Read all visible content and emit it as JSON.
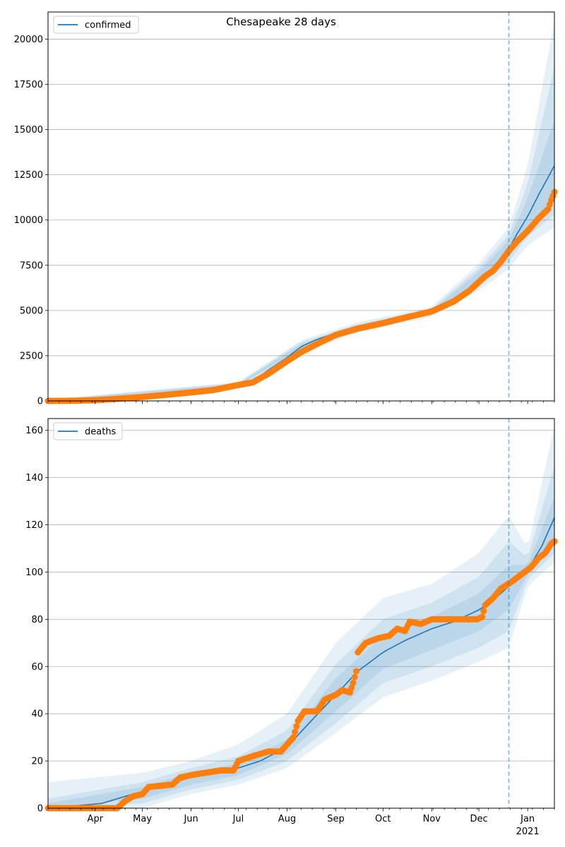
{
  "title": "Chesapeake 28 days",
  "colors": {
    "model_line": "#1f77b4",
    "observed": "#ff7f0e",
    "band": "#1f77b4",
    "grid": "#b0b0b0",
    "vline": "#1f77b4"
  },
  "x_axis": {
    "start": "2020-03-02",
    "end": "2021-01-18",
    "month_ticks": [
      {
        "date": "2020-04-01",
        "label": "Apr"
      },
      {
        "date": "2020-05-01",
        "label": "May"
      },
      {
        "date": "2020-06-01",
        "label": "Jun"
      },
      {
        "date": "2020-07-01",
        "label": "Jul"
      },
      {
        "date": "2020-08-01",
        "label": "Aug"
      },
      {
        "date": "2020-09-01",
        "label": "Sep"
      },
      {
        "date": "2020-10-01",
        "label": "Oct"
      },
      {
        "date": "2020-11-01",
        "label": "Nov"
      },
      {
        "date": "2020-12-01",
        "label": "Dec"
      },
      {
        "date": "2021-01-01",
        "label": "Jan"
      }
    ],
    "year_label": "2021",
    "forecast_start": "2020-12-20"
  },
  "chart_data": [
    {
      "type": "line",
      "legend": "confirmed",
      "legend_position": "upper-left",
      "grid_y": true,
      "ylim": [
        0,
        21500
      ],
      "yticks": [
        0,
        2500,
        5000,
        7500,
        10000,
        12500,
        15000,
        17500,
        20000
      ],
      "model": [
        [
          "2020-03-02",
          0
        ],
        [
          "2020-03-20",
          20
        ],
        [
          "2020-04-05",
          80
        ],
        [
          "2020-04-20",
          170
        ],
        [
          "2020-05-01",
          250
        ],
        [
          "2020-05-15",
          380
        ],
        [
          "2020-06-01",
          520
        ],
        [
          "2020-06-15",
          650
        ],
        [
          "2020-07-01",
          900
        ],
        [
          "2020-07-10",
          1100
        ],
        [
          "2020-07-20",
          1700
        ],
        [
          "2020-08-01",
          2400
        ],
        [
          "2020-08-10",
          3000
        ],
        [
          "2020-08-20",
          3400
        ],
        [
          "2020-09-01",
          3750
        ],
        [
          "2020-09-15",
          4050
        ],
        [
          "2020-10-01",
          4300
        ],
        [
          "2020-10-15",
          4550
        ],
        [
          "2020-11-01",
          4900
        ],
        [
          "2020-11-15",
          5450
        ],
        [
          "2020-11-25",
          6100
        ],
        [
          "2020-12-05",
          6900
        ],
        [
          "2020-12-15",
          7700
        ],
        [
          "2020-12-20",
          8400
        ],
        [
          "2020-12-25",
          9200
        ],
        [
          "2021-01-01",
          10200
        ],
        [
          "2021-01-08",
          11400
        ],
        [
          "2021-01-18",
          13000
        ]
      ],
      "bands": [
        {
          "lower": [
            [
              "2020-03-02",
              0
            ],
            [
              "2020-07-01",
              750
            ],
            [
              "2020-08-10",
              2700
            ],
            [
              "2020-09-15",
              3800
            ],
            [
              "2020-11-01",
              4650
            ],
            [
              "2020-12-01",
              6100
            ],
            [
              "2020-12-20",
              7300
            ],
            [
              "2021-01-01",
              8600
            ],
            [
              "2021-01-18",
              9600
            ]
          ],
          "upper": [
            [
              "2020-03-02",
              80
            ],
            [
              "2020-07-01",
              1050
            ],
            [
              "2020-08-10",
              3350
            ],
            [
              "2020-09-15",
              4350
            ],
            [
              "2020-11-01",
              5200
            ],
            [
              "2020-12-01",
              7600
            ],
            [
              "2020-12-20",
              9600
            ],
            [
              "2021-01-01",
              13000
            ],
            [
              "2021-01-18",
              21000
            ]
          ]
        },
        {
          "lower": [
            [
              "2020-03-02",
              0
            ],
            [
              "2020-07-01",
              800
            ],
            [
              "2020-08-10",
              2800
            ],
            [
              "2020-09-15",
              3900
            ],
            [
              "2020-11-01",
              4750
            ],
            [
              "2020-12-01",
              6300
            ],
            [
              "2020-12-20",
              7700
            ],
            [
              "2021-01-01",
              9100
            ],
            [
              "2021-01-18",
              10300
            ]
          ],
          "upper": [
            [
              "2020-03-02",
              50
            ],
            [
              "2020-07-01",
              1000
            ],
            [
              "2020-08-10",
              3250
            ],
            [
              "2020-09-15",
              4250
            ],
            [
              "2020-11-01",
              5100
            ],
            [
              "2020-12-01",
              7350
            ],
            [
              "2020-12-20",
              9200
            ],
            [
              "2021-01-01",
              12000
            ],
            [
              "2021-01-18",
              18500
            ]
          ]
        },
        {
          "lower": [
            [
              "2020-03-02",
              0
            ],
            [
              "2020-07-01",
              850
            ],
            [
              "2020-08-10",
              2880
            ],
            [
              "2020-09-15",
              3970
            ],
            [
              "2020-11-01",
              4820
            ],
            [
              "2020-12-01",
              6450
            ],
            [
              "2020-12-20",
              7950
            ],
            [
              "2021-01-01",
              9550
            ],
            [
              "2021-01-18",
              11200
            ]
          ],
          "upper": [
            [
              "2020-03-02",
              30
            ],
            [
              "2020-07-01",
              950
            ],
            [
              "2020-08-10",
              3150
            ],
            [
              "2020-09-15",
              4150
            ],
            [
              "2020-11-01",
              5000
            ],
            [
              "2020-12-01",
              7150
            ],
            [
              "2020-12-20",
              8900
            ],
            [
              "2021-01-01",
              11200
            ],
            [
              "2021-01-18",
              15500
            ]
          ]
        }
      ],
      "observed": [
        [
          "2020-03-02",
          0
        ],
        [
          "2020-03-20",
          10
        ],
        [
          "2020-04-01",
          40
        ],
        [
          "2020-04-10",
          90
        ],
        [
          "2020-04-20",
          150
        ],
        [
          "2020-05-01",
          220
        ],
        [
          "2020-05-15",
          330
        ],
        [
          "2020-06-01",
          470
        ],
        [
          "2020-06-15",
          600
        ],
        [
          "2020-07-01",
          880
        ],
        [
          "2020-07-10",
          1020
        ],
        [
          "2020-07-20",
          1500
        ],
        [
          "2020-08-01",
          2200
        ],
        [
          "2020-08-10",
          2700
        ],
        [
          "2020-08-20",
          3150
        ],
        [
          "2020-09-01",
          3650
        ],
        [
          "2020-09-15",
          4000
        ],
        [
          "2020-10-01",
          4300
        ],
        [
          "2020-10-15",
          4600
        ],
        [
          "2020-11-01",
          4950
        ],
        [
          "2020-11-15",
          5500
        ],
        [
          "2020-11-25",
          6100
        ],
        [
          "2020-12-05",
          6900
        ],
        [
          "2020-12-10",
          7200
        ],
        [
          "2020-12-15",
          7700
        ],
        [
          "2020-12-20",
          8300
        ],
        [
          "2020-12-25",
          8800
        ],
        [
          "2021-01-01",
          9400
        ],
        [
          "2021-01-08",
          10100
        ],
        [
          "2021-01-14",
          10600
        ],
        [
          "2021-01-16",
          11100
        ],
        [
          "2021-01-18",
          11550
        ]
      ]
    },
    {
      "type": "line",
      "legend": "deaths",
      "legend_position": "upper-left",
      "grid_y": true,
      "ylim": [
        0,
        165
      ],
      "yticks": [
        0,
        20,
        40,
        60,
        80,
        100,
        120,
        140,
        160
      ],
      "model": [
        [
          "2020-03-02",
          0
        ],
        [
          "2020-04-05",
          2
        ],
        [
          "2020-04-20",
          5
        ],
        [
          "2020-05-01",
          7
        ],
        [
          "2020-05-15",
          10
        ],
        [
          "2020-06-01",
          13
        ],
        [
          "2020-06-15",
          15
        ],
        [
          "2020-07-01",
          17
        ],
        [
          "2020-07-15",
          20
        ],
        [
          "2020-08-01",
          26
        ],
        [
          "2020-08-15",
          36
        ],
        [
          "2020-09-01",
          48
        ],
        [
          "2020-09-15",
          58
        ],
        [
          "2020-10-01",
          66
        ],
        [
          "2020-10-15",
          71
        ],
        [
          "2020-11-01",
          76
        ],
        [
          "2020-11-15",
          79
        ],
        [
          "2020-12-01",
          84
        ],
        [
          "2020-12-10",
          88
        ],
        [
          "2020-12-20",
          94
        ],
        [
          "2021-01-01",
          101
        ],
        [
          "2021-01-10",
          111
        ],
        [
          "2021-01-18",
          123
        ]
      ],
      "bands": [
        {
          "lower": [
            [
              "2020-03-02",
              0
            ],
            [
              "2020-05-01",
              0
            ],
            [
              "2020-06-01",
              6
            ],
            [
              "2020-07-01",
              10
            ],
            [
              "2020-08-01",
              17
            ],
            [
              "2020-09-01",
              32
            ],
            [
              "2020-10-01",
              47
            ],
            [
              "2020-11-01",
              54
            ],
            [
              "2020-12-01",
              62
            ],
            [
              "2020-12-20",
              68
            ],
            [
              "2021-01-01",
              94
            ],
            [
              "2021-01-18",
              104
            ]
          ],
          "upper": [
            [
              "2020-03-02",
              11
            ],
            [
              "2020-05-01",
              15
            ],
            [
              "2020-06-01",
              20
            ],
            [
              "2020-07-01",
              27
            ],
            [
              "2020-08-01",
              40
            ],
            [
              "2020-09-01",
              70
            ],
            [
              "2020-10-01",
              89
            ],
            [
              "2020-11-01",
              95
            ],
            [
              "2020-12-01",
              108
            ],
            [
              "2020-12-20",
              124
            ],
            [
              "2021-01-01",
              110
            ],
            [
              "2021-01-18",
              162
            ]
          ]
        },
        {
          "lower": [
            [
              "2020-03-02",
              0
            ],
            [
              "2020-05-01",
              2
            ],
            [
              "2020-06-01",
              8
            ],
            [
              "2020-07-01",
              12
            ],
            [
              "2020-08-01",
              20
            ],
            [
              "2020-09-01",
              36
            ],
            [
              "2020-10-01",
              53
            ],
            [
              "2020-11-01",
              60
            ],
            [
              "2020-12-01",
              68
            ],
            [
              "2020-12-20",
              75
            ],
            [
              "2021-01-01",
              97
            ],
            [
              "2021-01-18",
              108
            ]
          ],
          "upper": [
            [
              "2020-03-02",
              4
            ],
            [
              "2020-05-01",
              11
            ],
            [
              "2020-06-01",
              17
            ],
            [
              "2020-07-01",
              22
            ],
            [
              "2020-08-01",
              33
            ],
            [
              "2020-09-01",
              61
            ],
            [
              "2020-10-01",
              80
            ],
            [
              "2020-11-01",
              87
            ],
            [
              "2020-12-01",
              98
            ],
            [
              "2020-12-20",
              113
            ],
            [
              "2021-01-01",
              106
            ],
            [
              "2021-01-18",
              145
            ]
          ]
        },
        {
          "lower": [
            [
              "2020-03-02",
              0
            ],
            [
              "2020-05-01",
              4
            ],
            [
              "2020-06-01",
              10
            ],
            [
              "2020-07-01",
              14
            ],
            [
              "2020-08-01",
              23
            ],
            [
              "2020-09-01",
              41
            ],
            [
              "2020-10-01",
              59
            ],
            [
              "2020-11-01",
              67
            ],
            [
              "2020-12-01",
              75
            ],
            [
              "2020-12-20",
              84
            ],
            [
              "2021-01-01",
              99
            ],
            [
              "2021-01-18",
              112
            ]
          ],
          "upper": [
            [
              "2020-03-02",
              2
            ],
            [
              "2020-05-01",
              9
            ],
            [
              "2020-06-01",
              15
            ],
            [
              "2020-07-01",
              19
            ],
            [
              "2020-08-01",
              29
            ],
            [
              "2020-09-01",
              55
            ],
            [
              "2020-10-01",
              73
            ],
            [
              "2020-11-01",
              81
            ],
            [
              "2020-12-01",
              91
            ],
            [
              "2020-12-20",
              103
            ],
            [
              "2021-01-01",
              103
            ],
            [
              "2021-01-18",
              132
            ]
          ]
        }
      ],
      "observed": [
        [
          "2020-03-02",
          0
        ],
        [
          "2020-04-15",
          0
        ],
        [
          "2020-04-20",
          3
        ],
        [
          "2020-04-25",
          5
        ],
        [
          "2020-05-01",
          6
        ],
        [
          "2020-05-05",
          9
        ],
        [
          "2020-05-20",
          10
        ],
        [
          "2020-05-25",
          13
        ],
        [
          "2020-06-01",
          14
        ],
        [
          "2020-06-10",
          15
        ],
        [
          "2020-06-20",
          16
        ],
        [
          "2020-06-28",
          16
        ],
        [
          "2020-07-01",
          20
        ],
        [
          "2020-07-10",
          22
        ],
        [
          "2020-07-20",
          24
        ],
        [
          "2020-07-28",
          24
        ],
        [
          "2020-08-01",
          27
        ],
        [
          "2020-08-05",
          30
        ],
        [
          "2020-08-08",
          37
        ],
        [
          "2020-08-12",
          41
        ],
        [
          "2020-08-20",
          41
        ],
        [
          "2020-08-25",
          46
        ],
        [
          "2020-09-01",
          48
        ],
        [
          "2020-09-05",
          50
        ],
        [
          "2020-09-10",
          49
        ],
        [
          "2020-09-12",
          53
        ],
        [
          "2020-09-14",
          58
        ],
        [
          "2020-09-15",
          66
        ],
        [
          "2020-09-20",
          70
        ],
        [
          "2020-09-28",
          72
        ],
        [
          "2020-10-05",
          73
        ],
        [
          "2020-10-10",
          76
        ],
        [
          "2020-10-15",
          75
        ],
        [
          "2020-10-18",
          79
        ],
        [
          "2020-10-25",
          78
        ],
        [
          "2020-11-01",
          80
        ],
        [
          "2020-11-15",
          80
        ],
        [
          "2020-11-30",
          80
        ],
        [
          "2020-12-03",
          81
        ],
        [
          "2020-12-05",
          86
        ],
        [
          "2020-12-10",
          89
        ],
        [
          "2020-12-15",
          93
        ],
        [
          "2020-12-22",
          96
        ],
        [
          "2020-12-28",
          99
        ],
        [
          "2021-01-03",
          102
        ],
        [
          "2021-01-08",
          106
        ],
        [
          "2021-01-12",
          108
        ],
        [
          "2021-01-16",
          112
        ],
        [
          "2021-01-18",
          113
        ]
      ]
    }
  ]
}
